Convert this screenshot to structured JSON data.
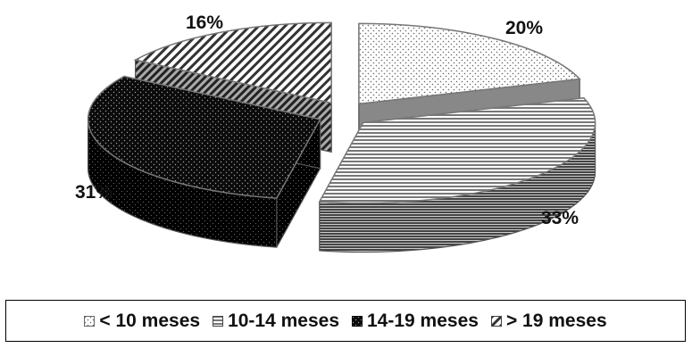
{
  "chart_data": {
    "type": "pie",
    "title": "",
    "style": "3d-exploded",
    "legend_position": "bottom",
    "slices": [
      {
        "label": "< 10 meses",
        "value": 20,
        "value_label": "20%",
        "pattern": "dots",
        "color": "#ffffff"
      },
      {
        "label": "10-14 meses",
        "value": 33,
        "value_label": "33%",
        "pattern": "horizontal-lines",
        "color": "#777777"
      },
      {
        "label": "14-19 meses",
        "value": 31,
        "value_label": "31%",
        "pattern": "dark-dots",
        "color": "#111111"
      },
      {
        "label": "> 19 meses",
        "value": 16,
        "value_label": "16%",
        "pattern": "diagonal-lines",
        "color": "#bbbbbb"
      }
    ]
  }
}
